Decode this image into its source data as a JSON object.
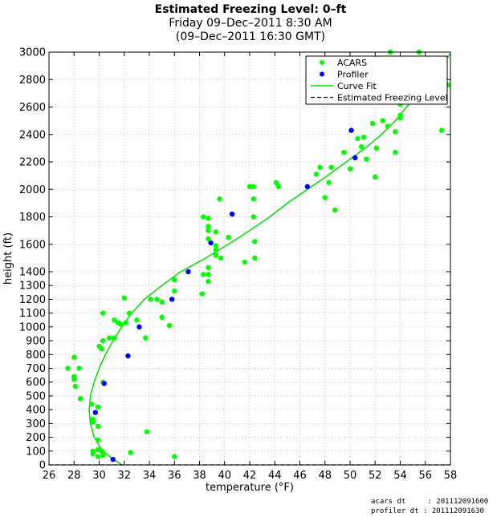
{
  "title": {
    "line1": "Estimated Freezing Level: 0–ft",
    "line2": "Friday 09–Dec–2011  8:30 AM",
    "line3": "(09–Dec–2011 16:30 GMT)"
  },
  "footer": {
    "acars_dt": "acars dt     : 201112091600",
    "profiler_dt": "profiler dt : 201112091630"
  },
  "colors": {
    "acars": "#00ff00",
    "profiler": "#0000ff",
    "curve": "#00e000",
    "freezing_level": "#0000cc",
    "grid": "#b0b0b0"
  },
  "chart_data": {
    "type": "scatter",
    "xlabel": "temperature (°F)",
    "ylabel": "height (ft)",
    "xlim": [
      26,
      58
    ],
    "ylim": [
      0,
      3000
    ],
    "xticks": [
      26,
      28,
      30,
      32,
      34,
      36,
      38,
      40,
      42,
      44,
      46,
      48,
      50,
      52,
      54,
      56,
      58
    ],
    "yticks": [
      0,
      100,
      200,
      300,
      400,
      500,
      600,
      700,
      800,
      900,
      1000,
      1100,
      1200,
      1300,
      1400,
      1600,
      1800,
      2000,
      2200,
      2400,
      2600,
      2800,
      3000
    ],
    "grid": true,
    "legend_position": "top-right",
    "series": [
      {
        "name": "ACARS",
        "kind": "scatter",
        "points": [
          [
            27.5,
            700
          ],
          [
            28.0,
            780
          ],
          [
            28.0,
            640
          ],
          [
            28.0,
            620
          ],
          [
            28.1,
            570
          ],
          [
            28.4,
            700
          ],
          [
            28.5,
            480
          ],
          [
            29.4,
            440
          ],
          [
            29.5,
            330
          ],
          [
            29.5,
            310
          ],
          [
            29.5,
            100
          ],
          [
            29.5,
            80
          ],
          [
            29.9,
            420
          ],
          [
            29.9,
            280
          ],
          [
            30.0,
            860
          ],
          [
            29.9,
            180
          ],
          [
            29.9,
            110
          ],
          [
            29.9,
            60
          ],
          [
            30.2,
            100
          ],
          [
            30.3,
            70
          ],
          [
            30.3,
            900
          ],
          [
            30.3,
            600
          ],
          [
            30.2,
            840
          ],
          [
            30.3,
            1100
          ],
          [
            30.8,
            920
          ],
          [
            31.2,
            920
          ],
          [
            31.2,
            1050
          ],
          [
            31.5,
            1030
          ],
          [
            31.7,
            1020
          ],
          [
            32.1,
            1030
          ],
          [
            32.0,
            1210
          ],
          [
            32.4,
            1100
          ],
          [
            32.5,
            90
          ],
          [
            33.0,
            1050
          ],
          [
            33.7,
            920
          ],
          [
            33.8,
            240
          ],
          [
            34.1,
            1200
          ],
          [
            34.6,
            1200
          ],
          [
            35.0,
            1180
          ],
          [
            35.0,
            1070
          ],
          [
            35.6,
            1010
          ],
          [
            35.8,
            1200
          ],
          [
            36.0,
            1260
          ],
          [
            36.0,
            1340
          ],
          [
            36.0,
            60
          ],
          [
            38.2,
            1240
          ],
          [
            38.3,
            1380
          ],
          [
            38.3,
            1800
          ],
          [
            38.7,
            1700
          ],
          [
            38.7,
            1640
          ],
          [
            38.7,
            1730
          ],
          [
            38.7,
            1790
          ],
          [
            38.7,
            1430
          ],
          [
            38.7,
            1330
          ],
          [
            38.7,
            1380
          ],
          [
            39.3,
            1520
          ],
          [
            39.3,
            1560
          ],
          [
            39.3,
            1590
          ],
          [
            39.3,
            1690
          ],
          [
            39.6,
            1930
          ],
          [
            39.7,
            1500
          ],
          [
            40.3,
            1650
          ],
          [
            41.6,
            1470
          ],
          [
            42.0,
            2020
          ],
          [
            42.3,
            1930
          ],
          [
            42.3,
            2020
          ],
          [
            42.3,
            1800
          ],
          [
            42.4,
            1620
          ],
          [
            42.4,
            1500
          ],
          [
            44.1,
            2050
          ],
          [
            44.3,
            2020
          ],
          [
            47.3,
            2110
          ],
          [
            47.6,
            2160
          ],
          [
            48.0,
            1940
          ],
          [
            48.3,
            2050
          ],
          [
            48.5,
            2160
          ],
          [
            48.8,
            1850
          ],
          [
            49.5,
            2270
          ],
          [
            50.0,
            2150
          ],
          [
            50.6,
            2370
          ],
          [
            50.9,
            2310
          ],
          [
            51.1,
            2380
          ],
          [
            51.3,
            2220
          ],
          [
            51.8,
            2480
          ],
          [
            52.0,
            2090
          ],
          [
            52.1,
            2300
          ],
          [
            52.6,
            2500
          ],
          [
            53.0,
            2460
          ],
          [
            53.2,
            3000
          ],
          [
            53.6,
            2420
          ],
          [
            53.6,
            2270
          ],
          [
            54.0,
            2520
          ],
          [
            54.0,
            2540
          ],
          [
            54.0,
            2620
          ],
          [
            55.5,
            3000
          ],
          [
            57.3,
            2430
          ],
          [
            57.8,
            2760
          ]
        ]
      },
      {
        "name": "Profiler",
        "kind": "scatter",
        "points": [
          [
            29.7,
            380
          ],
          [
            30.4,
            590
          ],
          [
            31.1,
            40
          ],
          [
            32.3,
            790
          ],
          [
            33.2,
            1000
          ],
          [
            35.8,
            1200
          ],
          [
            37.1,
            1400
          ],
          [
            38.9,
            1610
          ],
          [
            40.6,
            1820
          ],
          [
            46.6,
            2020
          ],
          [
            50.1,
            2430
          ],
          [
            50.4,
            2230
          ]
        ]
      },
      {
        "name": "Curve Fit",
        "kind": "line",
        "points": [
          [
            31.8,
            0
          ],
          [
            31.0,
            50
          ],
          [
            30.2,
            110
          ],
          [
            29.6,
            200
          ],
          [
            29.3,
            300
          ],
          [
            29.2,
            400
          ],
          [
            29.3,
            500
          ],
          [
            29.6,
            600
          ],
          [
            30.0,
            700
          ],
          [
            30.5,
            800
          ],
          [
            31.1,
            900
          ],
          [
            31.8,
            1000
          ],
          [
            32.6,
            1100
          ],
          [
            33.6,
            1200
          ],
          [
            35.0,
            1300
          ],
          [
            36.5,
            1400
          ],
          [
            38.5,
            1500
          ],
          [
            40.3,
            1600
          ],
          [
            42.0,
            1700
          ],
          [
            43.6,
            1800
          ],
          [
            45.0,
            1900
          ],
          [
            46.6,
            2000
          ],
          [
            48.2,
            2100
          ],
          [
            49.7,
            2200
          ],
          [
            51.2,
            2300
          ],
          [
            52.5,
            2400
          ],
          [
            53.6,
            2500
          ],
          [
            54.5,
            2600
          ],
          [
            55.5,
            2700
          ],
          [
            56.4,
            2800
          ],
          [
            57.3,
            2900
          ],
          [
            58.0,
            2990
          ]
        ]
      },
      {
        "name": "Estimated Freezing Level",
        "kind": "hline",
        "value": 0
      }
    ]
  }
}
